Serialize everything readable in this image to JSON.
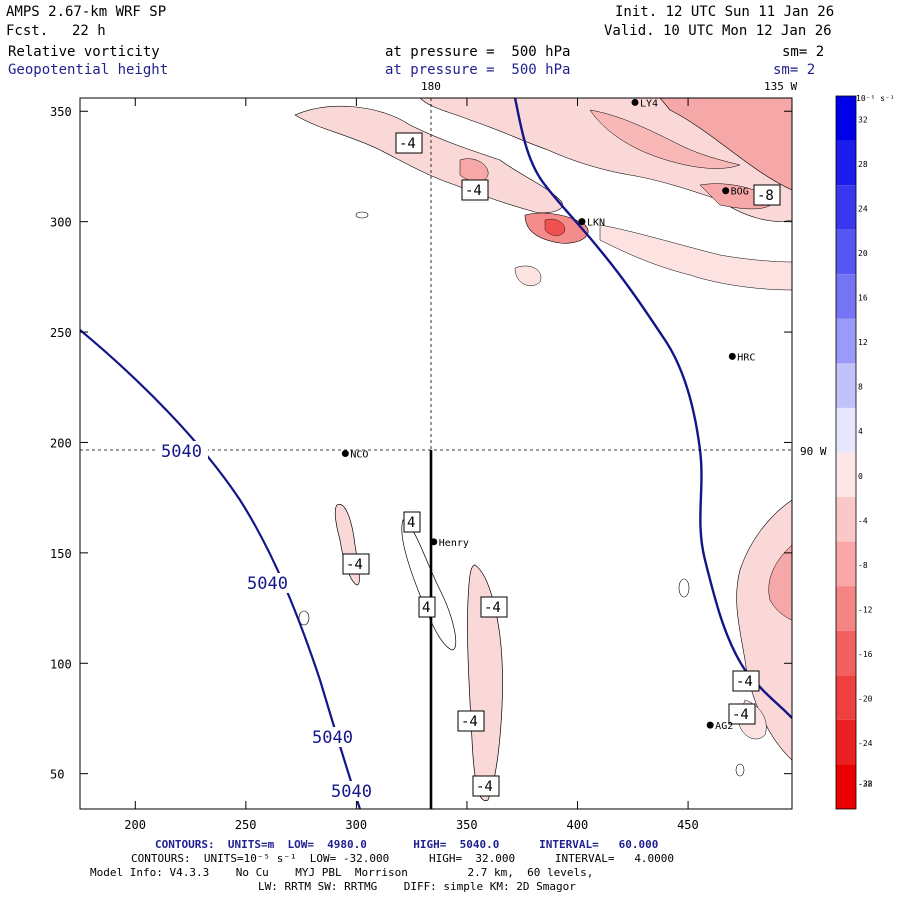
{
  "header": {
    "model": "AMPS 2.67-km WRF SP",
    "fcst_label": "Fcst.",
    "fcst_value": "22 h",
    "init": "Init. 12 UTC Sun 11 Jan 26",
    "valid": "Valid. 10 UTC Mon 12 Jan 26",
    "field1": "Relative vorticity",
    "field1_level": "at pressure =  500 hPa",
    "field1_sm": "sm= 2",
    "field2": "Geopotential height",
    "field2_level": "at pressure =  500 hPa",
    "field2_sm": "sm= 2"
  },
  "map": {
    "lon_180": "180",
    "lon_135": "135 W",
    "lon_90": "90 W",
    "x_ticks": [
      "200",
      "250",
      "300",
      "350",
      "400",
      "450"
    ],
    "y_ticks": [
      "350",
      "300",
      "250",
      "200",
      "150",
      "100",
      "50"
    ],
    "stations": [
      {
        "name": "NCO",
        "x": 295,
        "y": 195
      },
      {
        "name": "Henry",
        "x": 335,
        "y": 155
      },
      {
        "name": "HRC",
        "x": 470,
        "y": 239
      },
      {
        "name": "AG2",
        "x": 460,
        "y": 72
      },
      {
        "name": "BOG",
        "x": 467,
        "y": 314
      },
      {
        "name": "LKN",
        "x": 402,
        "y": 300
      },
      {
        "name": "LY4",
        "x": 426,
        "y": 354
      }
    ],
    "height_labels": [
      "5040",
      "5040",
      "5040",
      "5040"
    ],
    "vort_labels": [
      "-4",
      "-4",
      "-4",
      "4",
      "4",
      "-4",
      "-4",
      "-4",
      "-4",
      "-4",
      "-8"
    ]
  },
  "colorbar": {
    "unit": "10⁻⁵ s⁻¹",
    "ticks": [
      "32",
      "28",
      "24",
      "20",
      "16",
      "12",
      "8",
      "4",
      "0",
      "-4",
      "-8",
      "-12",
      "-16",
      "-20",
      "-24",
      "-28",
      "-32"
    ],
    "colors": [
      "#0000e8",
      "#1c1ced",
      "#3838ef",
      "#5656f2",
      "#7474f5",
      "#9a9af8",
      "#c2c2fb",
      "#e6e6fd",
      "#fde6e6",
      "#fbc8c8",
      "#f8a6a6",
      "#f58484",
      "#f26060",
      "#ef4040",
      "#ec2020",
      "#ea0000"
    ]
  },
  "footer": {
    "line1": "CONTOURS:  UNITS=m  LOW=  4980.0       HIGH=  5040.0      INTERVAL=   60.000",
    "line2": "CONTOURS:  UNITS=10⁻⁵ s⁻¹  LOW= -32.000      HIGH=  32.000      INTERVAL=   4.0000",
    "line3": "Model Info: V4.3.3    No Cu    MYJ PBL  Morrison         2.7 km,  60 levels,",
    "line4": "LW: RRTM SW: RRTMG    DIFF: simple KM: 2D Smagor"
  }
}
